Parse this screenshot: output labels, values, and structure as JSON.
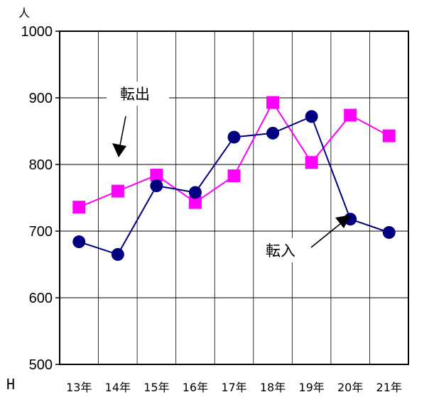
{
  "chart_data": {
    "type": "line",
    "unit_label": "人",
    "era_prefix": "H",
    "categories": [
      "13年",
      "14年",
      "15年",
      "16年",
      "17年",
      "18年",
      "19年",
      "20年",
      "21年"
    ],
    "ylim": [
      500,
      1000
    ],
    "yticks": [
      500,
      600,
      700,
      800,
      900,
      1000
    ],
    "grid": true,
    "series": [
      {
        "name": "転出",
        "color": "#ff00ff",
        "marker": "square",
        "values": [
          736,
          760,
          784,
          743,
          783,
          893,
          803,
          874,
          843
        ]
      },
      {
        "name": "転入",
        "color": "#000080",
        "marker": "circle",
        "values": [
          684,
          665,
          768,
          758,
          841,
          847,
          872,
          718,
          698
        ]
      }
    ],
    "annotations": [
      {
        "text": "転出",
        "series": "転出"
      },
      {
        "text": "転入",
        "series": "転入"
      }
    ]
  }
}
